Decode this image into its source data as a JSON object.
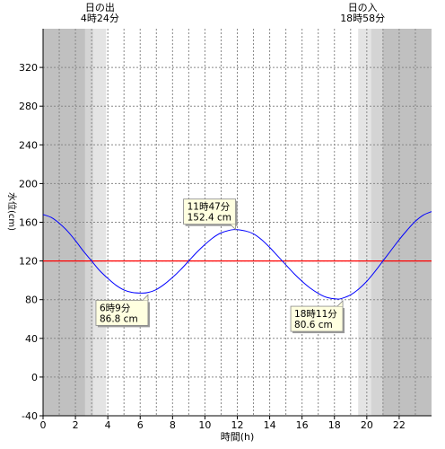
{
  "chart_data": {
    "type": "line",
    "xlabel": "時間(h)",
    "ylabel": "水位(cm)",
    "xlim": [
      0,
      24
    ],
    "ylim": [
      -40,
      360
    ],
    "x_ticks": [
      0,
      2,
      4,
      6,
      8,
      10,
      12,
      14,
      16,
      18,
      20,
      22
    ],
    "y_ticks": [
      -40,
      0,
      40,
      80,
      120,
      160,
      200,
      240,
      280,
      320
    ],
    "grid": true,
    "reference_line": {
      "value": 120,
      "color": "#ff0000"
    },
    "series": [
      {
        "color": "#0000ff",
        "x": [
          0,
          0.5,
          1,
          1.5,
          2,
          2.5,
          3,
          3.5,
          4,
          4.5,
          5,
          5.5,
          6.15,
          6.5,
          7,
          7.5,
          8,
          8.5,
          9,
          9.5,
          10,
          10.5,
          11,
          11.78,
          12.5,
          13,
          13.5,
          14,
          14.5,
          15,
          15.5,
          16,
          16.5,
          17,
          17.5,
          18.18,
          18.5,
          19,
          19.5,
          20,
          20.5,
          21,
          21.5,
          22,
          22.5,
          23,
          23.5,
          24
        ],
        "y": [
          168,
          165,
          159,
          151,
          141,
          130,
          120,
          110,
          102,
          95,
          90,
          87.5,
          86.8,
          87.5,
          90.5,
          96,
          103,
          111,
          120,
          129,
          137,
          144,
          149,
          152.4,
          151,
          148,
          142,
          134,
          125,
          116,
          107,
          99,
          92,
          86.5,
          82.5,
          80.6,
          81.5,
          85,
          91,
          99,
          109,
          120,
          131,
          142,
          152,
          161,
          167.5,
          171
        ]
      }
    ],
    "annotations": [
      {
        "time": "11時47分",
        "value": "152.4 cm"
      },
      {
        "time": "6時9分",
        "value": "86.8 cm"
      },
      {
        "time": "18時11分",
        "value": "80.6 cm"
      }
    ],
    "sun": {
      "sunrise_label": "日の出",
      "sunrise_time": "4時24分",
      "sunset_label": "日の入",
      "sunset_time": "18時58分"
    },
    "colors": {
      "night": "#c0c0c0",
      "twilight_dark": "#d4d4d4",
      "twilight_light": "#e4e4e4",
      "day": "#ffffff",
      "grid": "#888888"
    }
  }
}
